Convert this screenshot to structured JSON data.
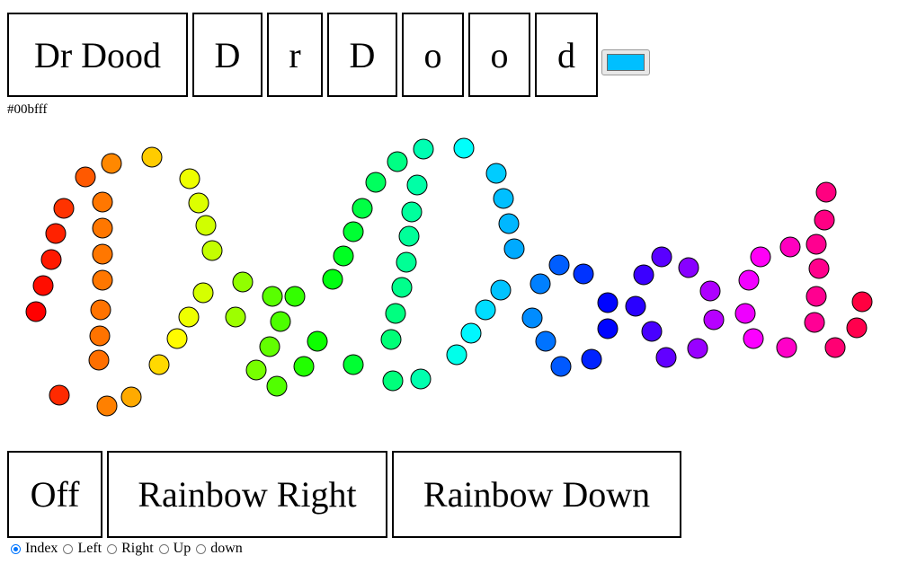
{
  "top_buttons": [
    {
      "label": "Dr Dood"
    },
    {
      "label": "D"
    },
    {
      "label": "r"
    },
    {
      "label": "D"
    },
    {
      "label": "o"
    },
    {
      "label": "o"
    },
    {
      "label": "d"
    }
  ],
  "color_picker": {
    "value": "#00bfff"
  },
  "color_hex_text": "#00bfff",
  "bottom_buttons": [
    {
      "label": "Off"
    },
    {
      "label": "Rainbow Right"
    },
    {
      "label": "Rainbow Down"
    }
  ],
  "radio_options": [
    {
      "label": "Index",
      "checked": true
    },
    {
      "label": "Left",
      "checked": false
    },
    {
      "label": "Right",
      "checked": false
    },
    {
      "label": "Up",
      "checked": false
    },
    {
      "label": "down",
      "checked": false
    }
  ],
  "dot_colors": {
    "outline": "#000000",
    "count": 102
  }
}
